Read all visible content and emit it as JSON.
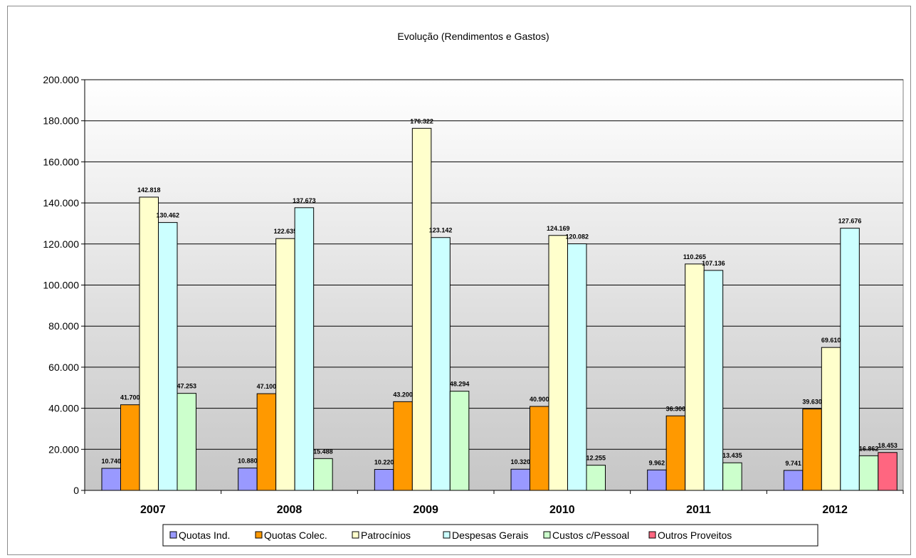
{
  "chart_data": {
    "type": "bar",
    "title": "Evolução (Rendimentos  e Gastos)",
    "categories": [
      "2007",
      "2008",
      "2009",
      "2010",
      "2011",
      "2012"
    ],
    "ylim": [
      0,
      200000
    ],
    "yticks": [
      0,
      20000,
      40000,
      60000,
      80000,
      100000,
      120000,
      140000,
      160000,
      180000,
      200000
    ],
    "ytick_labels": [
      "0",
      "20.000",
      "40.000",
      "60.000",
      "80.000",
      "100.000",
      "120.000",
      "140.000",
      "160.000",
      "180.000",
      "200.000"
    ],
    "grid": true,
    "legend_position": "bottom",
    "series": [
      {
        "name": "Quotas Ind.",
        "color": "#9999ff",
        "values": [
          10740,
          10880,
          10220,
          10320,
          9962,
          9741
        ],
        "labels": [
          "10.740",
          "10.880",
          "10.220",
          "10.320",
          "9.962",
          "9.741"
        ]
      },
      {
        "name": "Quotas Colec.",
        "color": "#ff9900",
        "values": [
          41700,
          47100,
          43200,
          40900,
          36300,
          39630
        ],
        "labels": [
          "41.700",
          "47.100",
          "43.200",
          "40.900",
          "36.300",
          "39.630"
        ]
      },
      {
        "name": "Patrocínios",
        "color": "#ffffcc",
        "values": [
          142818,
          122635,
          176322,
          124169,
          110265,
          69610
        ],
        "labels": [
          "142.818",
          "122.635",
          "176.322",
          "124.169",
          "110.265",
          "69.610"
        ]
      },
      {
        "name": "Despesas Gerais",
        "color": "#ccffff",
        "values": [
          130462,
          137673,
          123142,
          120082,
          107136,
          127676
        ],
        "labels": [
          "130.462",
          "137.673",
          "123.142",
          "120.082",
          "107.136",
          "127.676"
        ]
      },
      {
        "name": "Custos c/Pessoal",
        "color": "#ccffcc",
        "values": [
          47253,
          15488,
          48294,
          12255,
          13435,
          16862
        ],
        "labels": [
          "47.253",
          "15.488",
          "48.294",
          "12.255",
          "13.435",
          "16.862"
        ]
      },
      {
        "name": "Outros Proveitos",
        "color": "#ff6680",
        "values": [
          null,
          null,
          null,
          null,
          null,
          18453
        ],
        "labels": [
          null,
          null,
          null,
          null,
          null,
          "18.453"
        ]
      }
    ]
  }
}
